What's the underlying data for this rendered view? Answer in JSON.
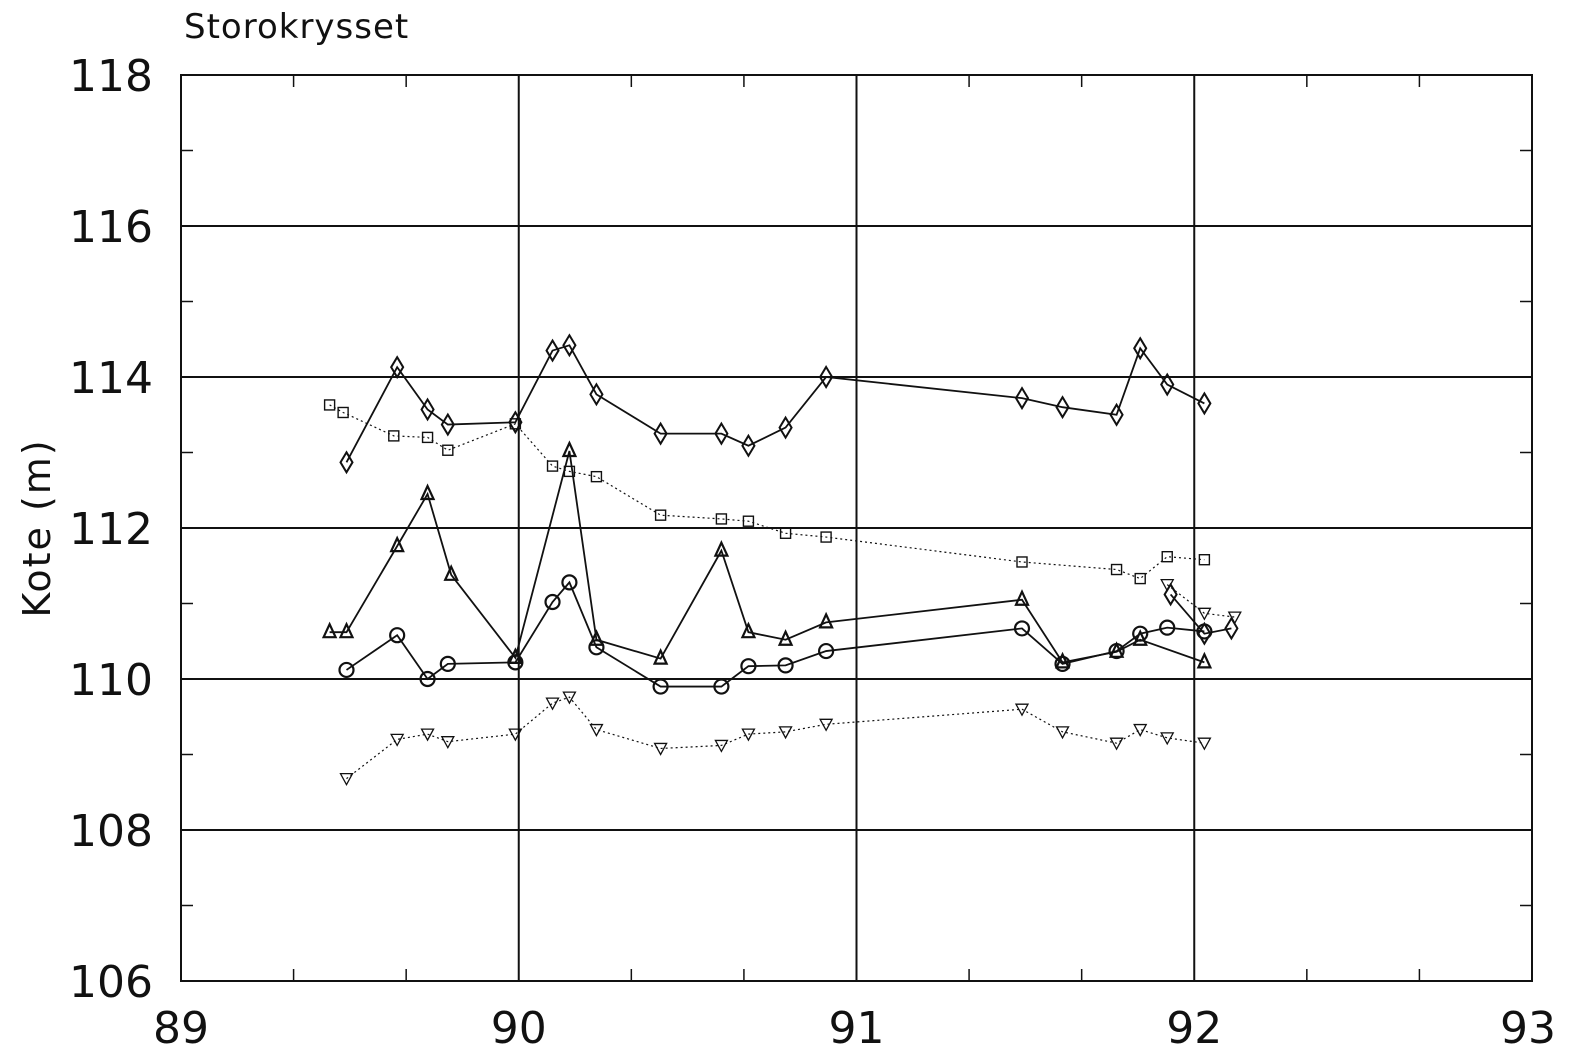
{
  "chart_data": {
    "type": "line",
    "title": "Storokrysset",
    "xlabel": "",
    "ylabel": "Kote (m)",
    "xlim": [
      89,
      93
    ],
    "ylim": [
      106,
      118
    ],
    "x_ticks": [
      "89",
      "90",
      "91",
      "92",
      "93"
    ],
    "y_ticks": [
      "106",
      "108",
      "110",
      "112",
      "114",
      "116",
      "118"
    ],
    "x_tick_values": [
      89,
      90,
      91,
      92,
      93
    ],
    "y_tick_values": [
      106,
      108,
      110,
      112,
      114,
      116,
      118
    ],
    "grid": true,
    "legend": "none",
    "series": [
      {
        "marker": "diamond",
        "line_style": "solid",
        "points": [
          [
            89.49,
            112.87
          ],
          [
            89.64,
            114.13
          ],
          [
            89.73,
            113.57
          ],
          [
            89.79,
            113.37
          ],
          [
            89.99,
            113.4
          ],
          [
            90.1,
            114.35
          ],
          [
            90.15,
            114.42
          ],
          [
            90.23,
            113.77
          ],
          [
            90.42,
            113.25
          ],
          [
            90.6,
            113.25
          ],
          [
            90.68,
            113.09
          ],
          [
            90.79,
            113.33
          ],
          [
            90.91,
            114.0
          ],
          [
            91.49,
            113.72
          ],
          [
            91.61,
            113.6
          ],
          [
            91.77,
            113.5
          ],
          [
            91.84,
            114.38
          ],
          [
            91.92,
            113.9
          ],
          [
            92.03,
            113.65
          ]
        ]
      },
      {
        "marker": "square",
        "line_style": "dotted",
        "points": [
          [
            89.44,
            113.63
          ],
          [
            89.48,
            113.53
          ],
          [
            89.63,
            113.22
          ],
          [
            89.73,
            113.2
          ],
          [
            89.79,
            113.03
          ],
          [
            89.99,
            113.38
          ],
          [
            90.1,
            112.82
          ],
          [
            90.15,
            112.75
          ],
          [
            90.23,
            112.68
          ],
          [
            90.42,
            112.17
          ],
          [
            90.6,
            112.12
          ],
          [
            90.68,
            112.09
          ],
          [
            90.79,
            111.93
          ],
          [
            90.91,
            111.88
          ],
          [
            91.49,
            111.55
          ],
          [
            91.77,
            111.45
          ],
          [
            91.84,
            111.33
          ],
          [
            91.92,
            111.62
          ],
          [
            92.03,
            111.58
          ]
        ]
      },
      {
        "marker": "triangle-up",
        "line_style": "solid",
        "points": [
          [
            89.44,
            110.62
          ],
          [
            89.49,
            110.62
          ],
          [
            89.64,
            111.76
          ],
          [
            89.73,
            112.45
          ],
          [
            89.8,
            111.38
          ],
          [
            89.99,
            110.28
          ],
          [
            90.15,
            113.02
          ],
          [
            90.23,
            110.52
          ],
          [
            90.42,
            110.27
          ],
          [
            90.6,
            111.7
          ],
          [
            90.68,
            110.62
          ],
          [
            90.79,
            110.52
          ],
          [
            90.91,
            110.75
          ],
          [
            91.49,
            111.05
          ],
          [
            91.61,
            110.22
          ],
          [
            91.77,
            110.36
          ],
          [
            91.84,
            110.52
          ],
          [
            92.03,
            110.22
          ]
        ]
      },
      {
        "marker": "circle",
        "line_style": "solid",
        "points": [
          [
            89.49,
            110.12
          ],
          [
            89.64,
            110.58
          ],
          [
            89.73,
            110.0
          ],
          [
            89.79,
            110.2
          ],
          [
            89.99,
            110.22
          ],
          [
            90.1,
            111.02
          ],
          [
            90.15,
            111.28
          ],
          [
            90.23,
            110.42
          ],
          [
            90.42,
            109.9
          ],
          [
            90.6,
            109.9
          ],
          [
            90.68,
            110.17
          ],
          [
            90.79,
            110.18
          ],
          [
            90.91,
            110.37
          ],
          [
            91.49,
            110.67
          ],
          [
            91.61,
            110.2
          ],
          [
            91.77,
            110.37
          ],
          [
            91.84,
            110.6
          ],
          [
            91.92,
            110.68
          ],
          [
            92.03,
            110.63
          ]
        ]
      },
      {
        "marker": "triangle-down",
        "line_style": "dotted",
        "points": [
          [
            89.49,
            108.68
          ],
          [
            89.64,
            109.2
          ],
          [
            89.73,
            109.27
          ],
          [
            89.79,
            109.17
          ],
          [
            89.99,
            109.27
          ],
          [
            90.1,
            109.68
          ],
          [
            90.15,
            109.76
          ],
          [
            90.23,
            109.33
          ],
          [
            90.42,
            109.08
          ],
          [
            90.6,
            109.12
          ],
          [
            90.68,
            109.27
          ],
          [
            90.79,
            109.3
          ],
          [
            90.91,
            109.4
          ],
          [
            91.49,
            109.6
          ],
          [
            91.61,
            109.3
          ],
          [
            91.77,
            109.15
          ],
          [
            91.84,
            109.33
          ],
          [
            91.92,
            109.22
          ],
          [
            92.03,
            109.15
          ]
        ]
      },
      {
        "marker": "triangle-down",
        "line_style": "dotted",
        "points": [
          [
            91.92,
            111.25
          ],
          [
            92.03,
            110.87
          ],
          [
            92.12,
            110.82
          ]
        ]
      },
      {
        "marker": "diamond",
        "line_style": "solid",
        "points": [
          [
            91.93,
            111.12
          ],
          [
            92.03,
            110.6
          ],
          [
            92.11,
            110.67
          ]
        ]
      }
    ]
  }
}
